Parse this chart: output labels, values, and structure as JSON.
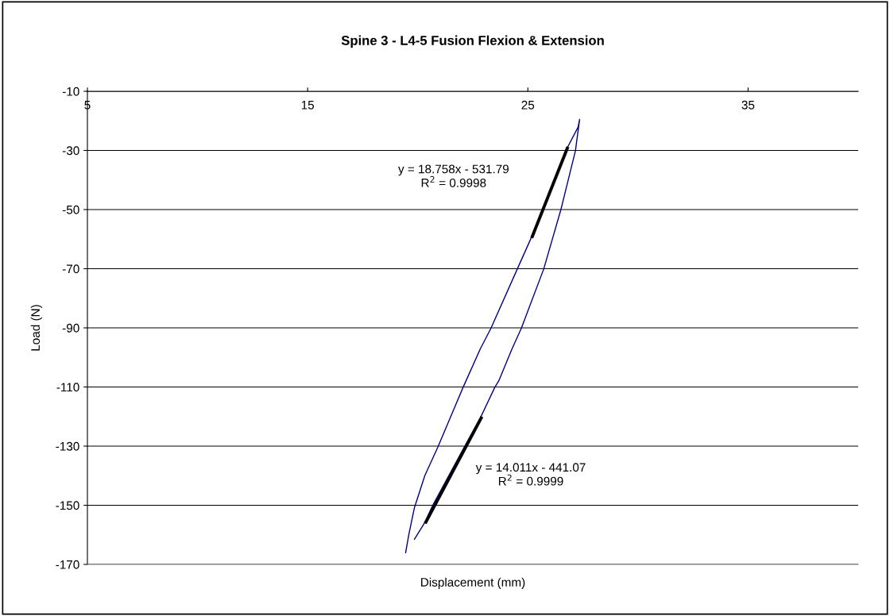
{
  "chart_data": {
    "type": "line",
    "title": "Spine 3 - L4-5 Fusion Flexion & Extension",
    "xlabel": "Displacement (mm)",
    "ylabel": "Load (N)",
    "series": [
      {
        "color": "#000080",
        "x": [
          19.45,
          19.6,
          19.85,
          20.32,
          20.92,
          22.06,
          22.84,
          23.32,
          24.52,
          25.18,
          25.66,
          26.77,
          27.28,
          27.35,
          27.16,
          26.5,
          25.72,
          24.7,
          24.28,
          23.68,
          23.5,
          22.84,
          22.12,
          20.68,
          20.3,
          19.85
        ],
        "values": [
          -166,
          -159.7,
          -150.8,
          -140,
          -130.2,
          -110.1,
          -97.1,
          -90.2,
          -70.1,
          -59.1,
          -50,
          -29.4,
          -22.1,
          -19.5,
          -30.1,
          -50,
          -70.1,
          -90.2,
          -97.1,
          -107.9,
          -110.1,
          -120.5,
          -130.2,
          -150,
          -156.1,
          -161.5
        ]
      },
      {
        "color": "#000000",
        "x": [
          25.2,
          26.79
        ],
        "values": [
          -59.1,
          -29.3
        ]
      },
      {
        "color": "#000000",
        "x": [
          20.37,
          22.88
        ],
        "values": [
          -155.7,
          -120.5
        ]
      }
    ],
    "annotations": [
      "y = 18.758x - 531.79\nR$^{2}$ = 0.9998",
      "y = 14.011x - 441.07\nR$^{2}$ = 0.9999"
    ],
    "xlim": [
      5,
      40
    ],
    "xticks": [
      5,
      15,
      25,
      35
    ],
    "ylim": [
      -170,
      -10
    ],
    "yticks": [
      -10,
      -30,
      -50,
      -70,
      -90,
      -110,
      -130,
      -150,
      -170
    ],
    "grid": "y",
    "marker": "none",
    "line_style": "solid"
  }
}
